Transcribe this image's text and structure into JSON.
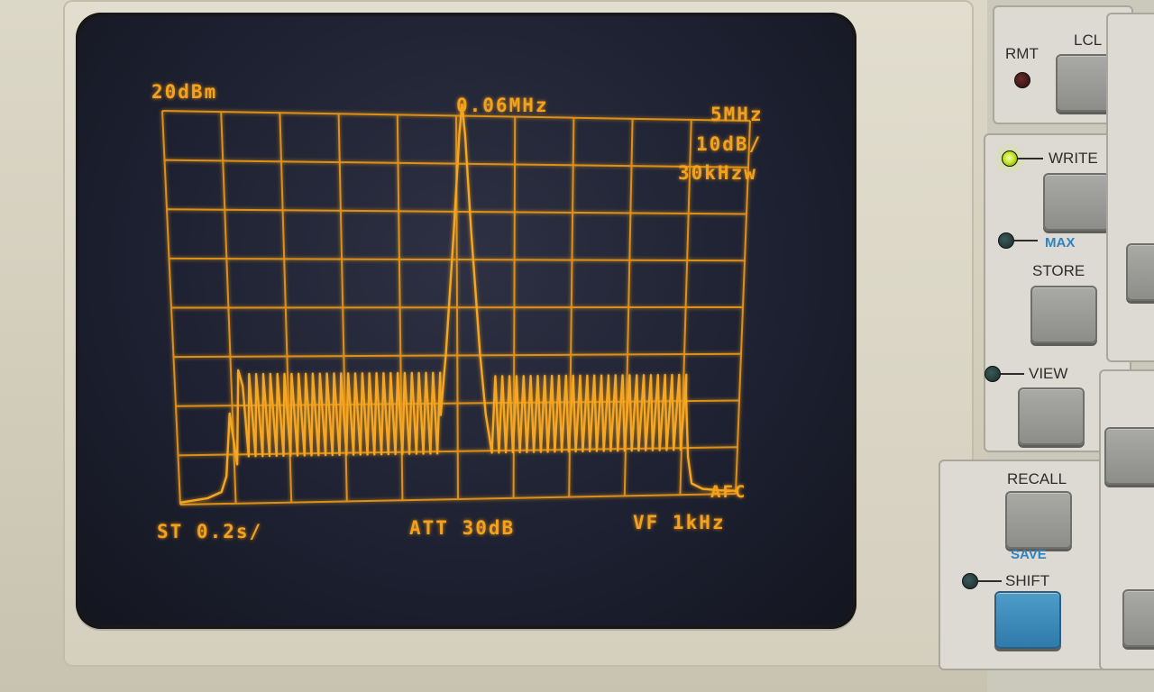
{
  "screen": {
    "ref_level": "20dBm",
    "center_freq": "0.06MHz",
    "span": "5MHz",
    "scale": "10dB/",
    "rbw": "30kHzw",
    "sweep_time": "ST 0.2s/",
    "attenuation": "ATT 30dB",
    "video_filter": "VF 1kHz",
    "afc": "AFC",
    "trace_color": "#f5a623"
  },
  "panel": {
    "rmt_label": "RMT",
    "lcl_label": "LCL",
    "write_label": "WRITE",
    "max_label": "MAX",
    "store_label": "STORE",
    "view_label": "VIEW",
    "recall_label": "RECALL",
    "save_label": "SAVE",
    "shift_label": "SHIFT",
    "write_led_on": true
  }
}
